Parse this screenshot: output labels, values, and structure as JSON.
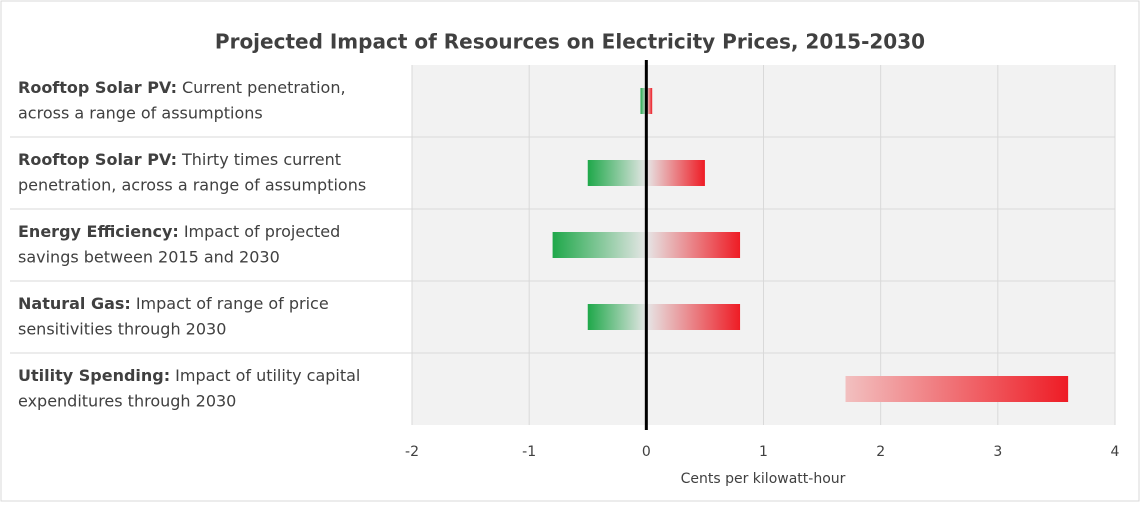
{
  "chart_data": {
    "type": "range-bar",
    "title": "Projected Impact of Resources on Electricity Prices, 2015-2030",
    "categories": [
      "Rooftop Solar PV:",
      "Rooftop Solar PV:",
      "Energy Efficiency:",
      "Natural Gas:",
      "Utility Spending:"
    ],
    "descriptions": [
      [
        "Current penetration,",
        "across a range of assumptions"
      ],
      [
        "Thirty times current",
        "penetration, across a range of assumptions"
      ],
      [
        "Impact of projected",
        "savings between 2015 and 2030"
      ],
      [
        "Impact of range of price",
        "sensitivities through 2030"
      ],
      [
        "Impact of utility capital",
        "expenditures through 2030"
      ]
    ],
    "low": [
      -0.05,
      -0.5,
      -0.8,
      -0.5,
      1.7
    ],
    "high": [
      0.05,
      0.5,
      0.8,
      0.8,
      3.6
    ],
    "negative_color": "#1fa84a",
    "positive_color": "#ee1c25",
    "xlim": [
      -2,
      4
    ],
    "xticks": [
      -2,
      -1,
      0,
      1,
      2,
      3,
      4
    ],
    "x_label": "Cents per kilowatt-hour",
    "grid": true
  }
}
